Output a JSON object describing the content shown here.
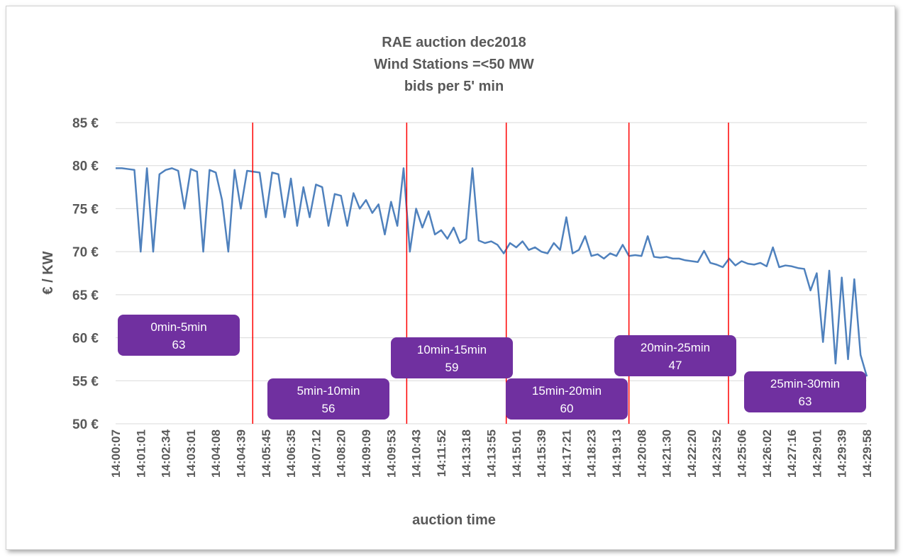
{
  "chart_data": {
    "type": "line",
    "title": [
      "RAE auction dec2018",
      "Wind Stations =<50 MW",
      "bids per 5' min"
    ],
    "x_label": "auction time",
    "y_label": "€ / KW",
    "categories": [
      "14:00:07",
      null,
      null,
      null,
      "14:01:01",
      null,
      null,
      null,
      "14:02:34",
      null,
      null,
      null,
      "14:03:01",
      null,
      null,
      null,
      "14:04:08",
      null,
      null,
      null,
      "14:04:39",
      null,
      null,
      null,
      "14:05:45",
      null,
      null,
      null,
      "14:06:35",
      null,
      null,
      null,
      "14:07:12",
      null,
      null,
      null,
      "14:08:20",
      null,
      null,
      null,
      "14:09:09",
      null,
      null,
      null,
      "14:09:53",
      null,
      null,
      null,
      "14:10:43",
      null,
      null,
      null,
      "14:11:52",
      null,
      null,
      null,
      "14:13:18",
      null,
      null,
      null,
      "14:13:55",
      null,
      null,
      null,
      "14:15:01",
      null,
      null,
      null,
      "14:15:39",
      null,
      null,
      null,
      "14:17:21",
      null,
      null,
      null,
      "14:18:23",
      null,
      null,
      null,
      "14:19:13",
      null,
      null,
      null,
      "14:20:08",
      null,
      null,
      null,
      "14:21:30",
      null,
      null,
      null,
      "14:22:20",
      null,
      null,
      null,
      "14:23:52",
      null,
      null,
      null,
      "14:25:06",
      null,
      null,
      null,
      "14:26:02",
      null,
      null,
      null,
      "14:27:16",
      null,
      null,
      null,
      "14:29:01",
      null,
      null,
      null,
      "14:29:39",
      null,
      null,
      null,
      "14:29:58"
    ],
    "series": [
      {
        "name": "bids",
        "color": "#4f81bd",
        "values": [
          79.7,
          79.7,
          79.6,
          79.5,
          70,
          79.7,
          70,
          79.0,
          79.5,
          79.7,
          79.4,
          75,
          79.6,
          79.3,
          70,
          79.5,
          79.2,
          76,
          70,
          79.5,
          75,
          79.4,
          79.3,
          79.2,
          74,
          79.2,
          79,
          74,
          78.5,
          73,
          77.5,
          74,
          77.8,
          77.5,
          73,
          76.7,
          76.5,
          73,
          76.8,
          75,
          76,
          74.5,
          75.5,
          72,
          75.8,
          73,
          79.7,
          70,
          75,
          72.8,
          74.7,
          72,
          72.5,
          71.5,
          72.8,
          71,
          71.5,
          79.7,
          71.3,
          71,
          71.2,
          70.8,
          69.8,
          71,
          70.5,
          71.2,
          70.2,
          70.5,
          70,
          69.8,
          71,
          70.2,
          74,
          69.8,
          70.2,
          71.8,
          69.5,
          69.7,
          69.2,
          69.8,
          69.5,
          70.8,
          69.5,
          69.6,
          69.5,
          71.8,
          69.4,
          69.3,
          69.4,
          69.2,
          69.2,
          69.0,
          68.9,
          68.8,
          70.1,
          68.7,
          68.5,
          68.2,
          69.2,
          68.4,
          68.9,
          68.6,
          68.5,
          68.7,
          68.3,
          70.5,
          68.2,
          68.4,
          68.3,
          68.1,
          68.0,
          65.5,
          67.5,
          59.5,
          67.8,
          57,
          67,
          57.5,
          66.8,
          58,
          55.5
        ]
      }
    ],
    "ylim": [
      50,
      85
    ],
    "yticks": [
      {
        "value": 50,
        "label": "50 €"
      },
      {
        "value": 55,
        "label": "55 €"
      },
      {
        "value": 60,
        "label": "60 €"
      },
      {
        "value": 65,
        "label": "65 €"
      },
      {
        "value": 70,
        "label": "70 €"
      },
      {
        "value": 75,
        "label": "75 €"
      },
      {
        "value": 80,
        "label": "80 €"
      },
      {
        "value": 85,
        "label": "85 €"
      }
    ],
    "grid": true,
    "dividers": {
      "color": "#ff0000",
      "x": [
        21.9,
        46.5,
        62.4,
        82,
        97.9
      ]
    },
    "annotations": [
      {
        "label": "0min-5min",
        "count": 63
      },
      {
        "label": "5min-10min",
        "count": 56
      },
      {
        "label": "10min-15min",
        "count": 59
      },
      {
        "label": "15min-20min",
        "count": 60
      },
      {
        "label": "20min-25min",
        "count": 47
      },
      {
        "label": "25min-30min",
        "count": 63
      }
    ],
    "annotation_color": "#7030a0"
  }
}
